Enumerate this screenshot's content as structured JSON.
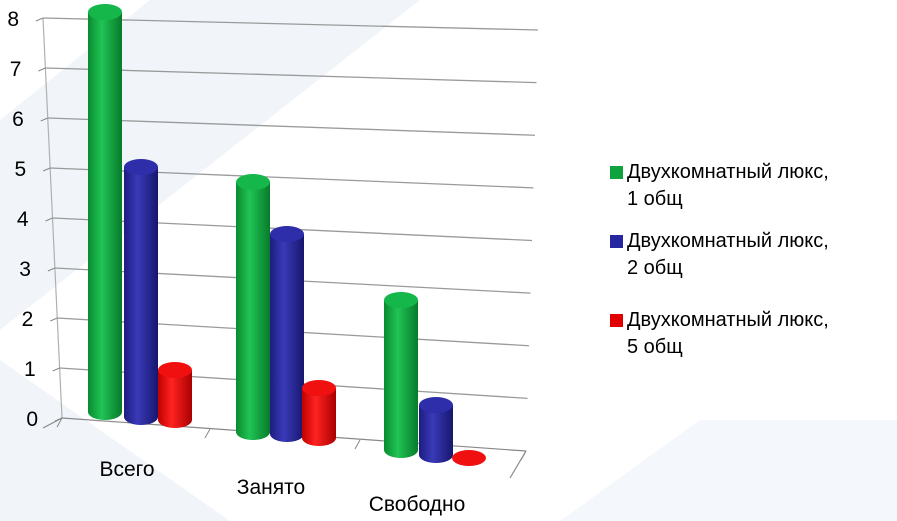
{
  "chart_data": {
    "type": "bar",
    "categories": [
      "Всего",
      "Занято",
      "Свободно"
    ],
    "series": [
      {
        "name": "Двухкомнатный люкс, 1 общ",
        "values": [
          8,
          5,
          3
        ],
        "color": "#0ea33c"
      },
      {
        "name": "Двухкомнатный люкс, 2 общ",
        "values": [
          5,
          4,
          1
        ],
        "color": "#2626a0"
      },
      {
        "name": "Двухкомнатный люкс, 5 общ",
        "values": [
          1,
          1,
          0
        ],
        "color": "#e00000"
      }
    ],
    "y_ticks": [
      "0",
      "1",
      "2",
      "3",
      "4",
      "5",
      "6",
      "7",
      "8"
    ],
    "ylim": [
      0,
      8
    ],
    "grid": true,
    "legend_position": "right",
    "bar_shape": "3d-cylinder"
  }
}
